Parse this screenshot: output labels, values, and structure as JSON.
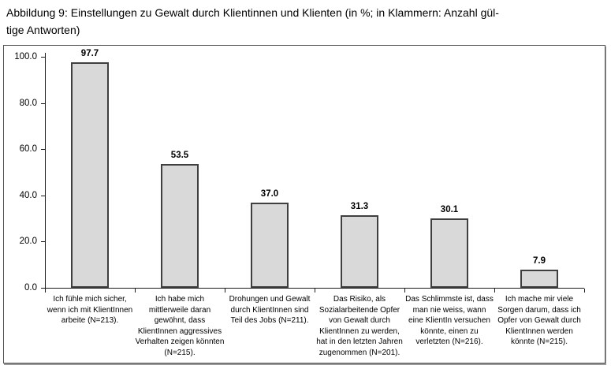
{
  "figure": {
    "title_line1": "Abbildung 9: Einstellungen zu Gewalt durch Klientinnen und Klienten (in %; in Klammern: Anzahl gül-",
    "title_line2": "tige Antworten)"
  },
  "chart_data": {
    "type": "bar",
    "title": "",
    "xlabel": "",
    "ylabel": "",
    "categories": [
      "Ich fühle mich sicher, wenn ich mit KlientInnen arbeite (N=213).",
      "Ich habe mich mittlerweile daran gewöhnt, dass KlientInnen aggressives Verhalten zeigen könnten (N=215).",
      "Drohungen und Gewalt durch KlientInnen sind Teil des Jobs (N=211).",
      "Das Risiko, als Sozialarbeitende Opfer von Gewalt durch KlientInnen zu werden, hat in den letzten Jahren zugenommen (N=201).",
      "Das Schlimmste ist, dass man nie weiss, wann eine KlientIn versuchen könnte, einen zu verletzten (N=216).",
      "Ich mache mir viele Sorgen darum, dass ich Opfer von Gewalt durch KlientInnen werden könnte (N=215)."
    ],
    "values": [
      97.7,
      53.5,
      37.0,
      31.3,
      30.1,
      7.9
    ],
    "value_labels": [
      "97.7",
      "53.5",
      "37.0",
      "31.3",
      "30.1",
      "7.9"
    ],
    "ylim": [
      0,
      100
    ],
    "yticks": [
      0,
      20,
      40,
      60,
      80,
      100
    ],
    "ytick_labels": [
      "0.0",
      "20.0",
      "40.0",
      "60.0",
      "80.0",
      "100.0"
    ],
    "grid": false,
    "legend": "none",
    "bar_fill": "#d9d9d9",
    "bar_border": "#3f3f3f",
    "axis_color": "#1a1a1a"
  }
}
